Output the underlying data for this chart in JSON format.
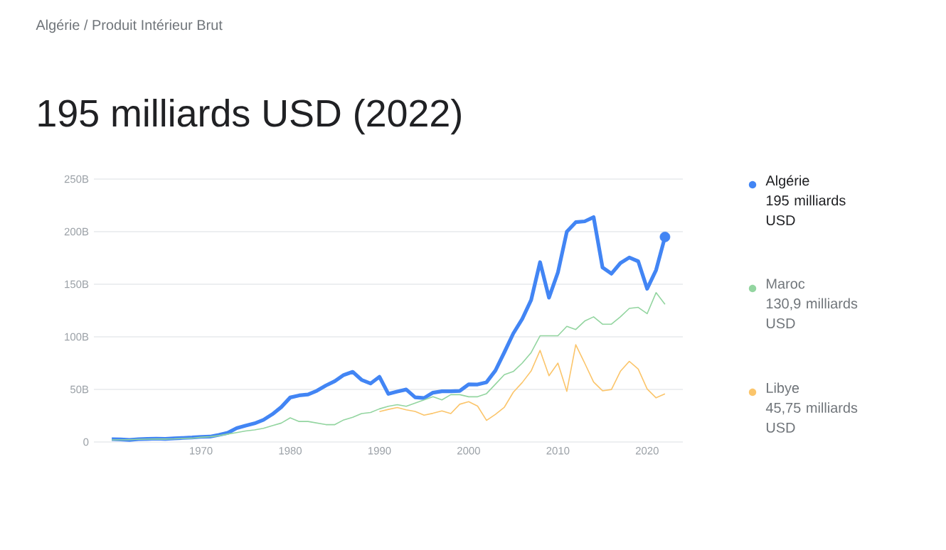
{
  "chart_data": {
    "type": "line",
    "subtitle": "Algérie / Produit Intérieur Brut",
    "title": "195 milliards USD (2022)",
    "x": [
      1960,
      1961,
      1962,
      1963,
      1964,
      1965,
      1966,
      1967,
      1968,
      1969,
      1970,
      1971,
      1972,
      1973,
      1974,
      1975,
      1976,
      1977,
      1978,
      1979,
      1980,
      1981,
      1982,
      1983,
      1984,
      1985,
      1986,
      1987,
      1988,
      1989,
      1990,
      1991,
      1992,
      1993,
      1994,
      1995,
      1996,
      1997,
      1998,
      1999,
      2000,
      2001,
      2002,
      2003,
      2004,
      2005,
      2006,
      2007,
      2008,
      2009,
      2010,
      2011,
      2012,
      2013,
      2014,
      2015,
      2016,
      2017,
      2018,
      2019,
      2020,
      2021,
      2022
    ],
    "series": [
      {
        "name": "Algérie",
        "color": "#4285f4",
        "values": [
          2.7,
          2.4,
          2.0,
          2.7,
          2.9,
          3.2,
          3.0,
          3.4,
          3.9,
          4.3,
          4.9,
          5.1,
          6.8,
          8.7,
          13.2,
          15.6,
          17.7,
          21.0,
          26.4,
          33.2,
          42.3,
          44.3,
          45.2,
          48.8,
          53.7,
          57.9,
          63.7,
          66.7,
          59.1,
          55.6,
          62.0,
          45.7,
          48.0,
          49.9,
          42.5,
          41.8,
          46.9,
          48.2,
          48.2,
          48.6,
          54.8,
          54.7,
          56.8,
          68.0,
          85.3,
          103.2,
          117.0,
          135.0,
          171.0,
          137.2,
          161.2,
          200.0,
          209.0,
          209.8,
          213.8,
          165.9,
          160.0,
          170.1,
          175.4,
          171.8,
          145.7,
          163.5,
          195
        ]
      },
      {
        "name": "Maroc",
        "color": "#93d5a0",
        "values": [
          2.0,
          2.0,
          2.2,
          2.5,
          2.7,
          2.9,
          2.8,
          3.0,
          3.4,
          3.6,
          4.5,
          5,
          6,
          7.5,
          9,
          10.5,
          11.5,
          13,
          15.5,
          18,
          23,
          19.5,
          19.5,
          18,
          16.5,
          16.5,
          21,
          23.5,
          27,
          28,
          31.5,
          34,
          35.5,
          34,
          37,
          40,
          43,
          40,
          45,
          45,
          43,
          43,
          46,
          55,
          64,
          67,
          75,
          85,
          101,
          101,
          101,
          110,
          107,
          115,
          119,
          112,
          112,
          119,
          127,
          128,
          122,
          142,
          130.9
        ]
      },
      {
        "name": "Libye",
        "color": "#fbc56b",
        "values": [
          null,
          null,
          null,
          null,
          null,
          null,
          null,
          null,
          null,
          null,
          null,
          null,
          null,
          null,
          null,
          null,
          null,
          null,
          null,
          null,
          null,
          null,
          null,
          null,
          null,
          null,
          null,
          null,
          null,
          null,
          28.9,
          31.0,
          32.8,
          30.6,
          29.0,
          25.5,
          27.3,
          29.6,
          27.0,
          35.9,
          38.3,
          34.1,
          20.5,
          26.3,
          33.1,
          47.3,
          56.5,
          67.5,
          87.1,
          63.0,
          75.0,
          48.2,
          92.5,
          75.0,
          57.0,
          48.7,
          49.9,
          67.2,
          76.7,
          69.3,
          50.4,
          42.0,
          45.75
        ]
      }
    ],
    "annotations": [
      "195 milliards USD",
      "130,9 milliards USD",
      "45,75 milliards USD"
    ],
    "xlim": [
      1958,
      2024
    ],
    "xticks": [
      1970,
      1980,
      1990,
      2000,
      2010,
      2020
    ],
    "ylim": [
      0,
      250
    ],
    "yticks": [
      0,
      {
        "value": 50,
        "label": "50B"
      },
      {
        "value": 100,
        "label": "100B"
      },
      {
        "value": 150,
        "label": "150B"
      },
      {
        "value": 200,
        "label": "200B"
      },
      {
        "value": 250,
        "label": "250B"
      }
    ],
    "grid": "y",
    "legend": "right"
  }
}
